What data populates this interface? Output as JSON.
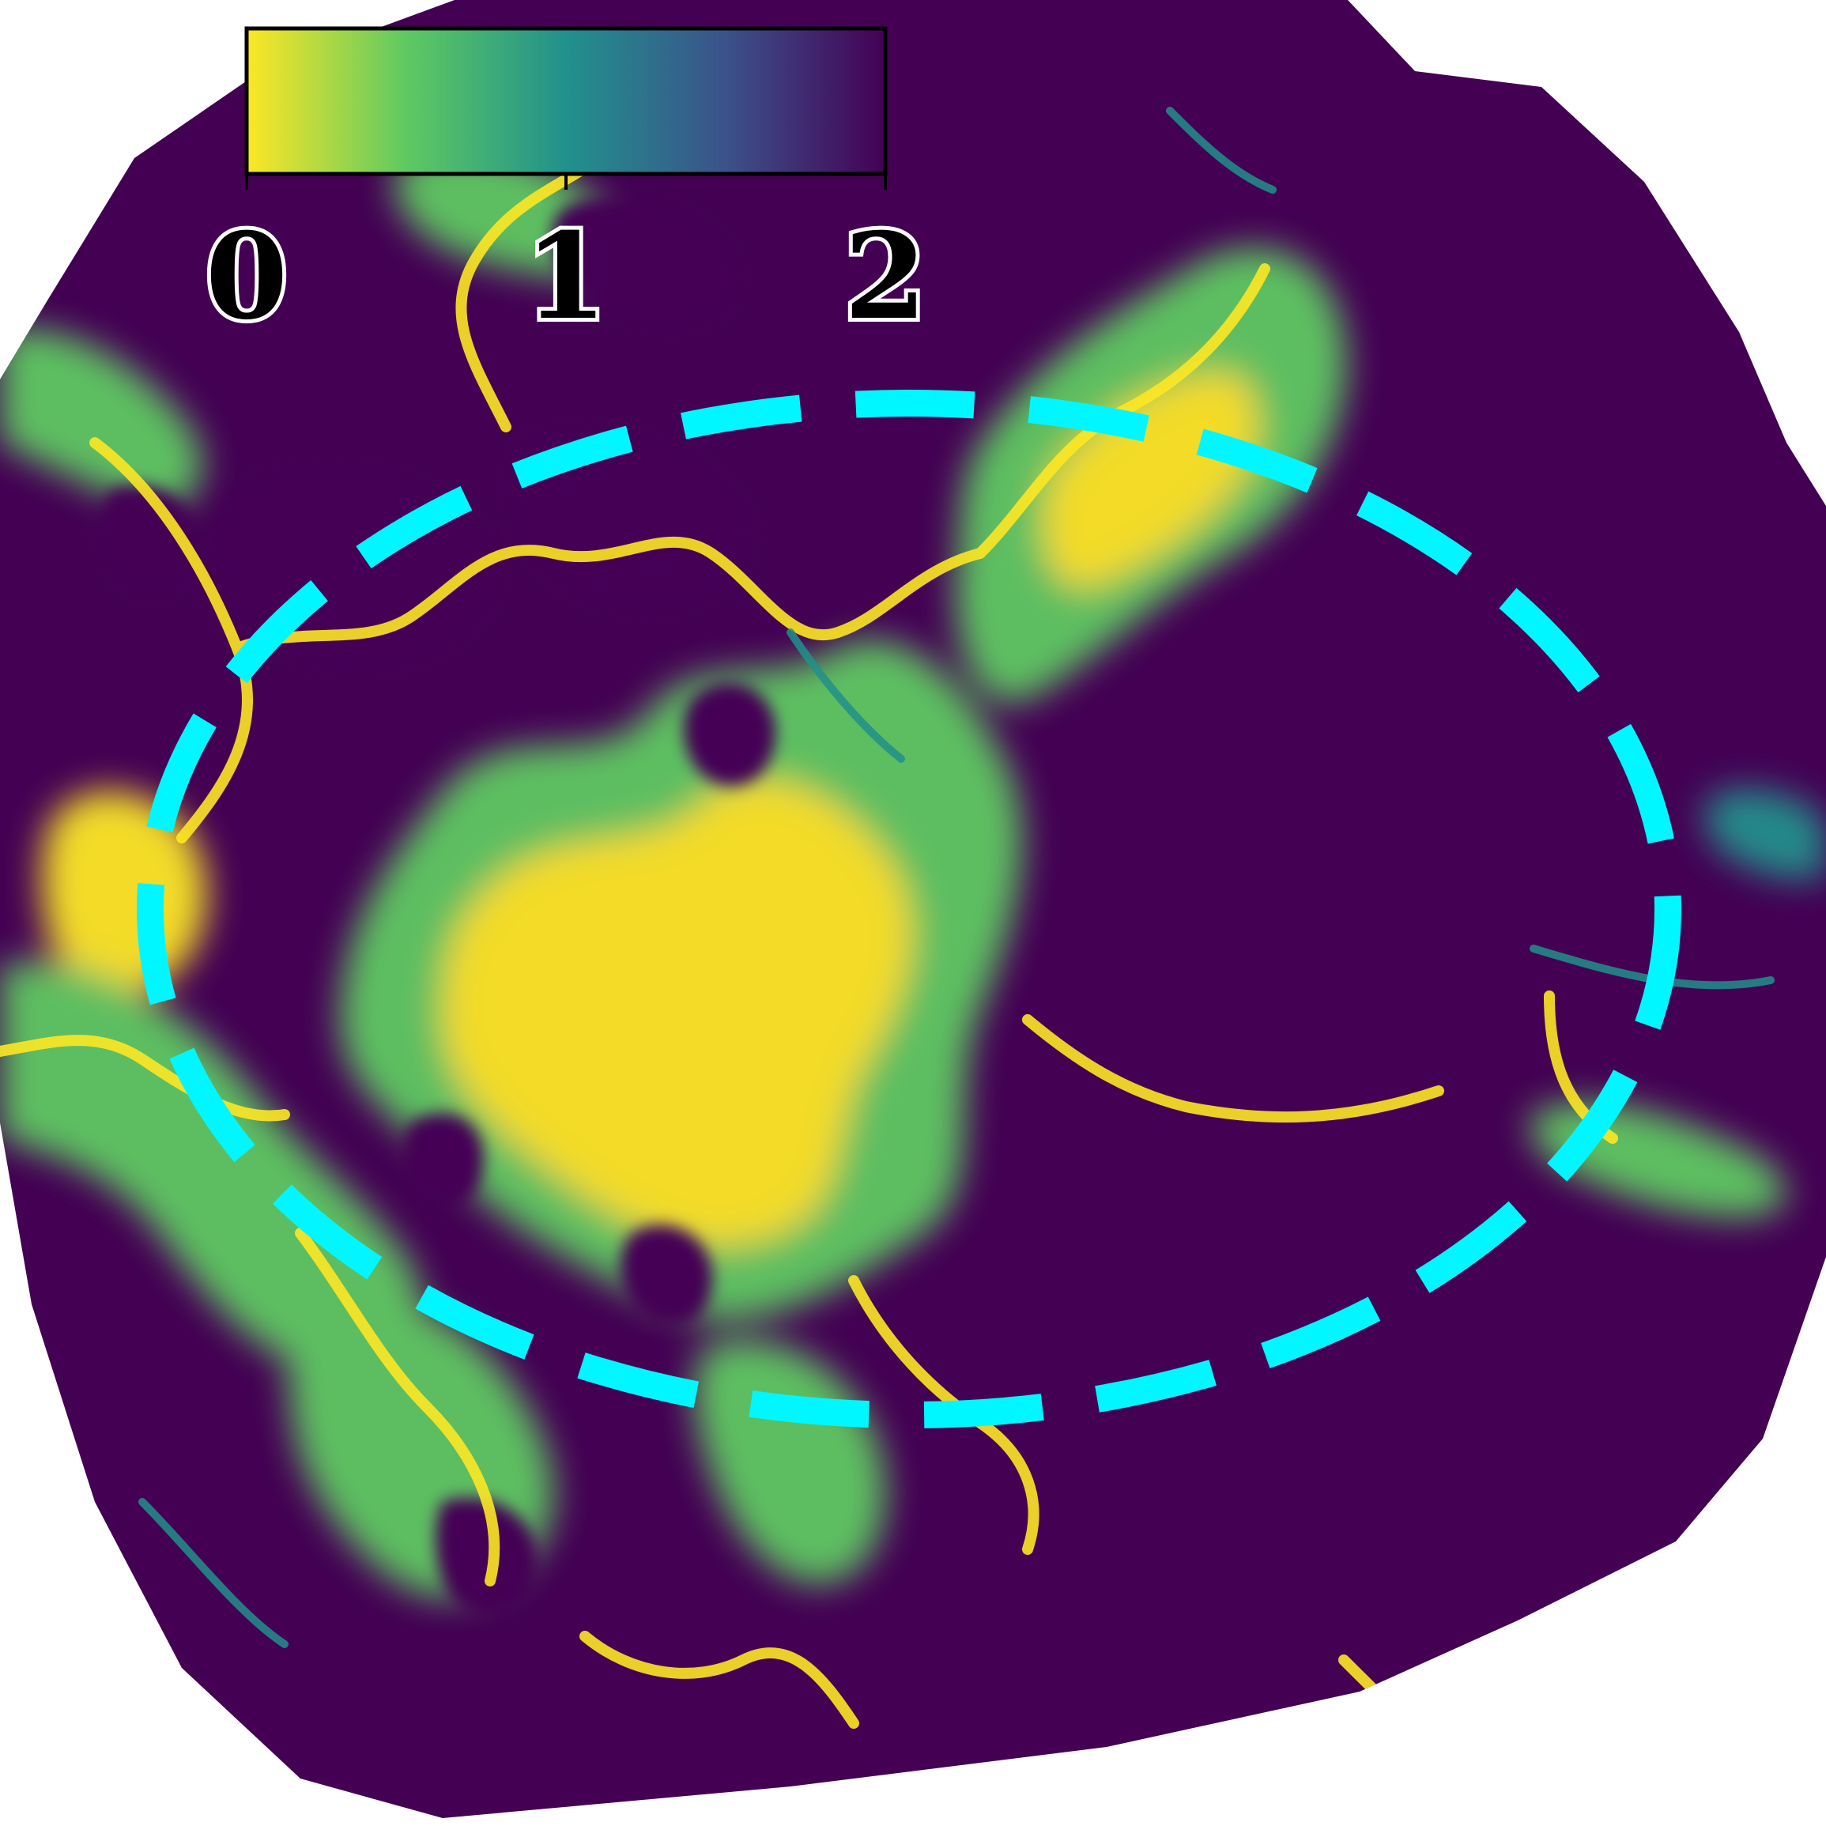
{
  "chart_data": {
    "type": "heatmap",
    "title": "",
    "xlabel": "",
    "ylabel": "",
    "colormap": "viridis_r",
    "colorbar": {
      "min": 0,
      "max": 2,
      "ticks": [
        "0",
        "1",
        "2"
      ],
      "placement": "top-left",
      "orientation": "horizontal"
    },
    "background_value": 2,
    "overlay": {
      "shape": "dashed ellipse",
      "color": "#00f7ff"
    },
    "colors": {
      "low": "#fde725",
      "mid": "#21918c",
      "high": "#440154",
      "outside": "#ffffff"
    }
  }
}
